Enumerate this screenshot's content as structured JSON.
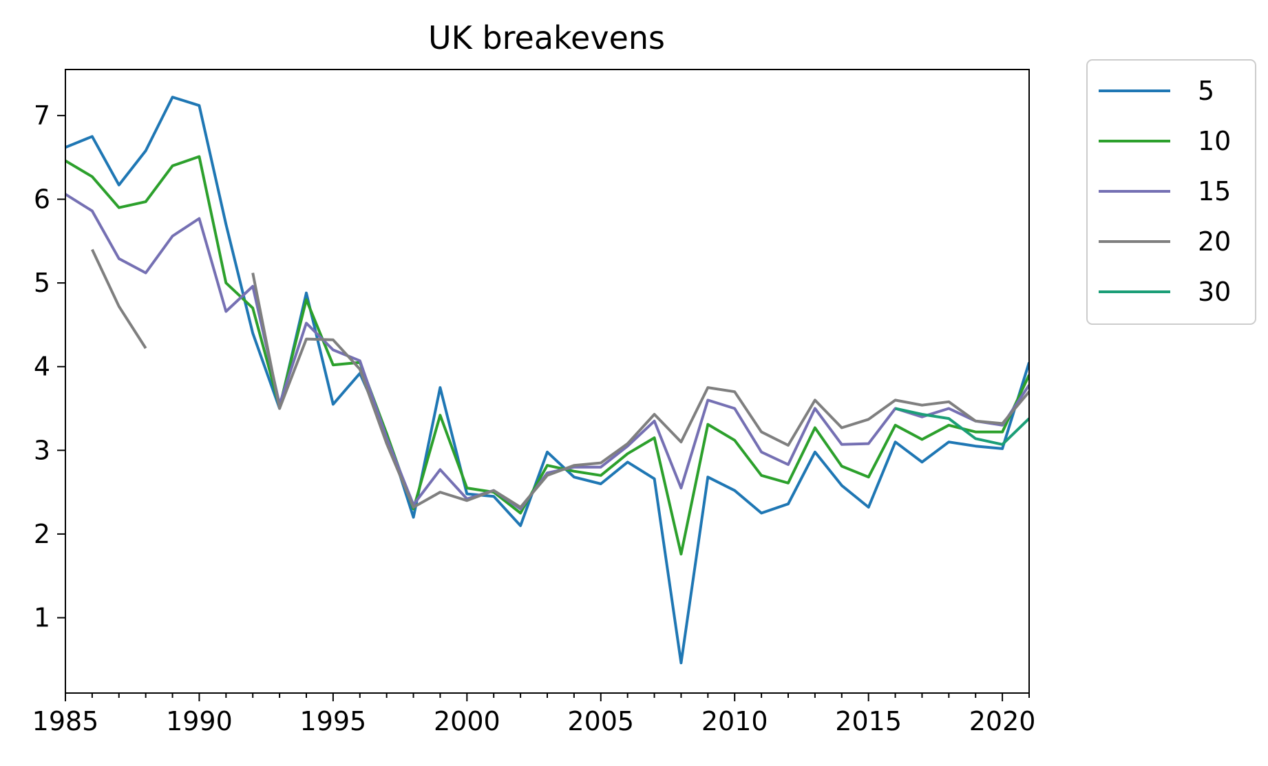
{
  "chart_data": {
    "type": "line",
    "title": "UK breakevens",
    "xlabel": "",
    "ylabel": "",
    "xlim": [
      1985,
      2021
    ],
    "ylim": [
      0.1,
      7.55
    ],
    "xticks_major": [
      1985,
      1990,
      1995,
      2000,
      2005,
      2010,
      2015,
      2020
    ],
    "xticks_major_labels": [
      "1985",
      "1990",
      "1995",
      "2000",
      "2005",
      "2010",
      "2015",
      "2020"
    ],
    "yticks": [
      1,
      2,
      3,
      4,
      5,
      6,
      7
    ],
    "ytick_labels": [
      "1",
      "2",
      "3",
      "4",
      "5",
      "6",
      "7"
    ],
    "legend_position": "outside-right-top",
    "series": [
      {
        "name": "5",
        "color": "#1f77b4",
        "x": [
          1985,
          1986,
          1987,
          1988,
          1989,
          1990,
          1991,
          1992,
          1993,
          1994,
          1995,
          1996,
          1997,
          1998,
          1999,
          2000,
          2001,
          2002,
          2003,
          2004,
          2005,
          2006,
          2007,
          2008,
          2009,
          2010,
          2011,
          2012,
          2013,
          2014,
          2015,
          2016,
          2017,
          2018,
          2019,
          2020,
          2021
        ],
        "values": [
          6.62,
          6.75,
          6.17,
          6.58,
          7.22,
          7.12,
          5.7,
          4.4,
          3.5,
          4.88,
          3.55,
          3.92,
          3.2,
          2.2,
          3.75,
          2.48,
          2.45,
          2.1,
          2.98,
          2.68,
          2.6,
          2.86,
          2.66,
          0.46,
          2.68,
          2.52,
          2.25,
          2.36,
          2.98,
          2.58,
          2.32,
          3.1,
          2.86,
          3.1,
          3.05,
          3.02,
          4.05
        ]
      },
      {
        "name": "10",
        "color": "#2ca02c",
        "x": [
          1985,
          1986,
          1987,
          1988,
          1989,
          1990,
          1991,
          1992,
          1993,
          1994,
          1995,
          1996,
          1997,
          1998,
          1999,
          2000,
          2001,
          2002,
          2003,
          2004,
          2005,
          2006,
          2007,
          2008,
          2009,
          2010,
          2011,
          2012,
          2013,
          2014,
          2015,
          2016,
          2017,
          2018,
          2019,
          2020,
          2021
        ],
        "values": [
          6.46,
          6.27,
          5.9,
          5.97,
          6.4,
          6.51,
          5.0,
          4.7,
          3.52,
          4.8,
          4.02,
          4.05,
          3.2,
          2.3,
          3.42,
          2.55,
          2.5,
          2.25,
          2.82,
          2.75,
          2.7,
          2.96,
          3.15,
          1.76,
          3.31,
          3.12,
          2.7,
          2.61,
          3.27,
          2.81,
          2.68,
          3.3,
          3.13,
          3.3,
          3.22,
          3.22,
          3.9
        ]
      },
      {
        "name": "15",
        "color": "#7570b3",
        "x": [
          1985,
          1986,
          1987,
          1988,
          1989,
          1990,
          1991,
          1992,
          1993,
          1994,
          1995,
          1996,
          1997,
          1998,
          1999,
          2000,
          2001,
          2002,
          2003,
          2004,
          2005,
          2006,
          2007,
          2008,
          2009,
          2010,
          2011,
          2012,
          2013,
          2014,
          2015,
          2016,
          2017,
          2018,
          2019,
          2020,
          2021
        ],
        "values": [
          6.06,
          5.86,
          5.29,
          5.12,
          5.56,
          5.77,
          4.66,
          4.96,
          3.55,
          4.52,
          4.2,
          4.07,
          3.15,
          2.35,
          2.77,
          2.42,
          2.52,
          2.3,
          2.73,
          2.8,
          2.8,
          3.05,
          3.35,
          2.55,
          3.6,
          3.5,
          2.98,
          2.83,
          3.5,
          3.07,
          3.08,
          3.5,
          3.4,
          3.5,
          3.35,
          3.3,
          3.78
        ]
      },
      {
        "name": "20",
        "color": "#7f7f7f",
        "x": [
          1985,
          1986,
          1987,
          1988,
          1989,
          1990,
          1991,
          1992,
          1993,
          1994,
          1995,
          1996,
          1997,
          1998,
          1999,
          2000,
          2001,
          2002,
          2003,
          2004,
          2005,
          2006,
          2007,
          2008,
          2009,
          2010,
          2011,
          2012,
          2013,
          2014,
          2015,
          2016,
          2017,
          2018,
          2019,
          2020,
          2021
        ],
        "values": [
          null,
          5.4,
          4.72,
          4.22,
          null,
          null,
          null,
          5.12,
          3.5,
          4.33,
          4.32,
          3.97,
          3.08,
          2.32,
          2.5,
          2.4,
          2.52,
          2.32,
          2.7,
          2.82,
          2.85,
          3.08,
          3.43,
          3.1,
          3.75,
          3.7,
          3.22,
          3.06,
          3.6,
          3.27,
          3.37,
          3.6,
          3.54,
          3.58,
          3.35,
          3.32,
          3.7
        ]
      },
      {
        "name": "30",
        "color": "#1b9e77",
        "x": [
          2016,
          2017,
          2018,
          2019,
          2020,
          2021
        ],
        "values": [
          3.5,
          3.43,
          3.38,
          3.14,
          3.07,
          3.38
        ]
      }
    ]
  }
}
